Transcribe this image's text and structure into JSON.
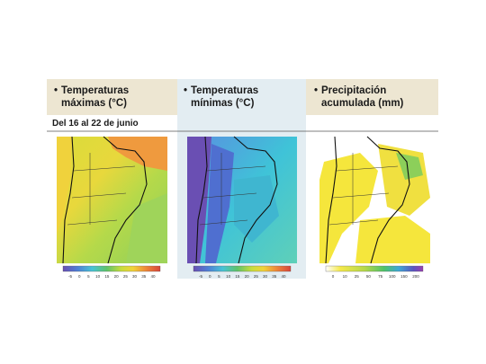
{
  "header": {
    "date_range": "Del 16 al 22 de junio"
  },
  "panels": [
    {
      "title_line1": "Temperaturas",
      "title_line2": "máximas (°C)",
      "scale_ticks": [
        -5,
        0,
        5,
        10,
        15,
        20,
        25,
        30,
        35,
        40
      ]
    },
    {
      "title_line1": "Temperaturas",
      "title_line2": "mínimas (°C)",
      "scale_ticks": [
        -5,
        0,
        5,
        10,
        15,
        20,
        25,
        30,
        35,
        40
      ]
    },
    {
      "title_line1": "Precipitación",
      "title_line2": "acumulada (mm)",
      "scale_ticks": [
        0,
        10,
        25,
        50,
        75,
        100,
        150,
        200
      ]
    }
  ]
}
